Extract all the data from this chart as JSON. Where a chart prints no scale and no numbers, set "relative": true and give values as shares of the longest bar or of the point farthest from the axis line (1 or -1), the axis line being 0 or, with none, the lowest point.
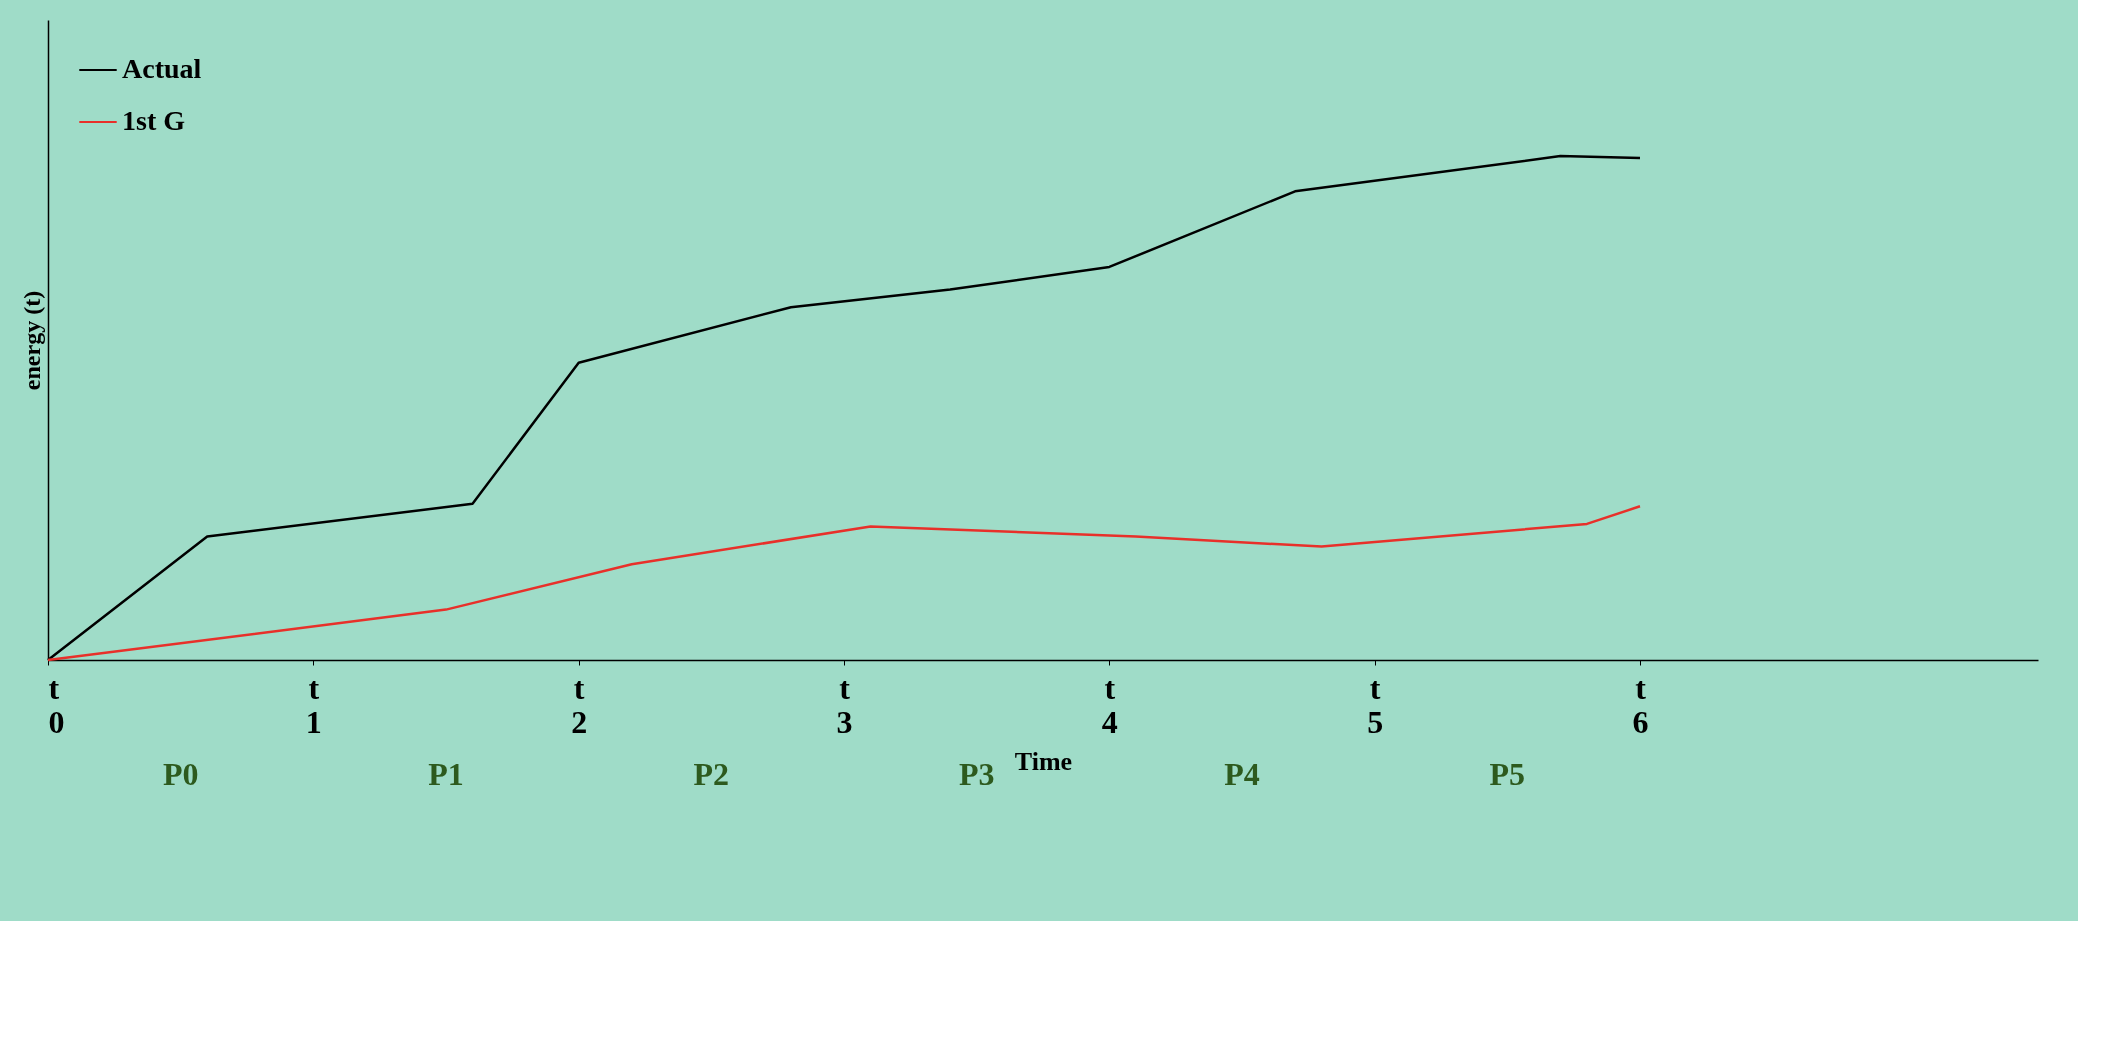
{
  "chart_data": {
    "type": "line",
    "xlabel": "Time",
    "ylabel": "energy (t)",
    "relative": true,
    "legend": "top left",
    "grid": false,
    "marker": "none",
    "line_style": "solid",
    "categories": [
      "t\n0",
      null,
      null,
      null,
      null,
      null,
      null,
      null,
      null,
      null,
      "t\n1",
      null,
      null,
      null,
      null,
      null,
      null,
      null,
      null,
      null,
      "t\n2",
      null,
      null,
      null,
      null,
      null,
      null,
      null,
      null,
      null,
      "t\n3",
      null,
      null,
      null,
      null,
      null,
      null,
      null,
      null,
      null,
      "t\n4",
      null,
      null,
      null,
      null,
      null,
      null,
      null,
      null,
      null,
      "t\n5",
      null,
      null,
      null,
      null,
      null,
      null,
      null,
      null,
      null,
      "t\n6",
      null,
      null,
      null,
      null,
      null,
      null,
      null,
      null,
      null,
      null,
      null,
      null,
      null,
      null,
      null
    ],
    "series": [
      {
        "name": "Actual",
        "color": "#000000",
        "values": [
          0,
          null,
          null,
          null,
          null,
          null,
          0.245,
          null,
          null,
          null,
          null,
          null,
          null,
          null,
          null,
          null,
          0.31,
          null,
          null,
          null,
          0.59,
          null,
          null,
          null,
          null,
          null,
          null,
          null,
          0.7,
          null,
          null,
          null,
          null,
          null,
          0.735,
          null,
          null,
          null,
          null,
          null,
          0.78,
          null,
          null,
          null,
          null,
          null,
          null,
          0.93,
          null,
          null,
          null,
          null,
          null,
          null,
          null,
          null,
          null,
          1,
          null,
          null,
          0.996,
          null,
          null,
          null,
          null,
          null,
          null,
          null,
          null,
          null,
          null,
          null,
          null,
          null,
          null,
          null
        ]
      },
      {
        "name": "1st G",
        "color": "#e8302a",
        "values": [
          0,
          null,
          null,
          null,
          null,
          null,
          null,
          null,
          null,
          null,
          null,
          null,
          null,
          null,
          null,
          0.1,
          null,
          null,
          null,
          null,
          null,
          null,
          0.19,
          null,
          null,
          null,
          null,
          null,
          null,
          null,
          null,
          0.265,
          null,
          null,
          null,
          null,
          null,
          null,
          null,
          null,
          null,
          0.245,
          null,
          null,
          null,
          null,
          null,
          null,
          0.225,
          null,
          null,
          null,
          null,
          null,
          null,
          null,
          null,
          null,
          0.27,
          null,
          0.305,
          null,
          null,
          null,
          null,
          null,
          null,
          null,
          null,
          null,
          null,
          null,
          null,
          null,
          null,
          null
        ]
      }
    ],
    "annotations": [
      "P0",
      "P1",
      "P2",
      "P3",
      "P4",
      "P5"
    ]
  }
}
